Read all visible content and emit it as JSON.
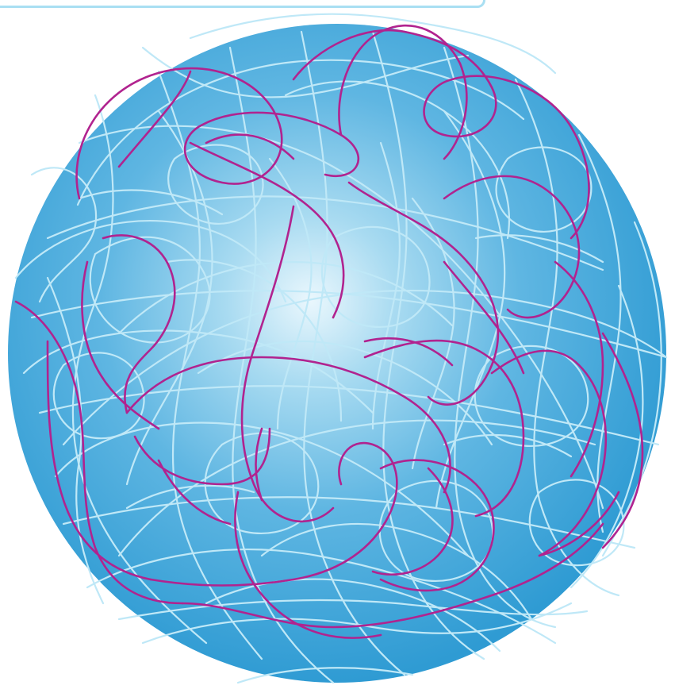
{
  "illustration": {
    "subject": "tangled-thread-ball",
    "colors": {
      "sphere_highlight": "#eaf7fd",
      "sphere_mid": "#6bbfe6",
      "sphere_base": "#2f9bd3",
      "light_thread": "#bfe8f7",
      "accent_thread": "#b1238f",
      "top_bar": "#a9dff2"
    }
  }
}
